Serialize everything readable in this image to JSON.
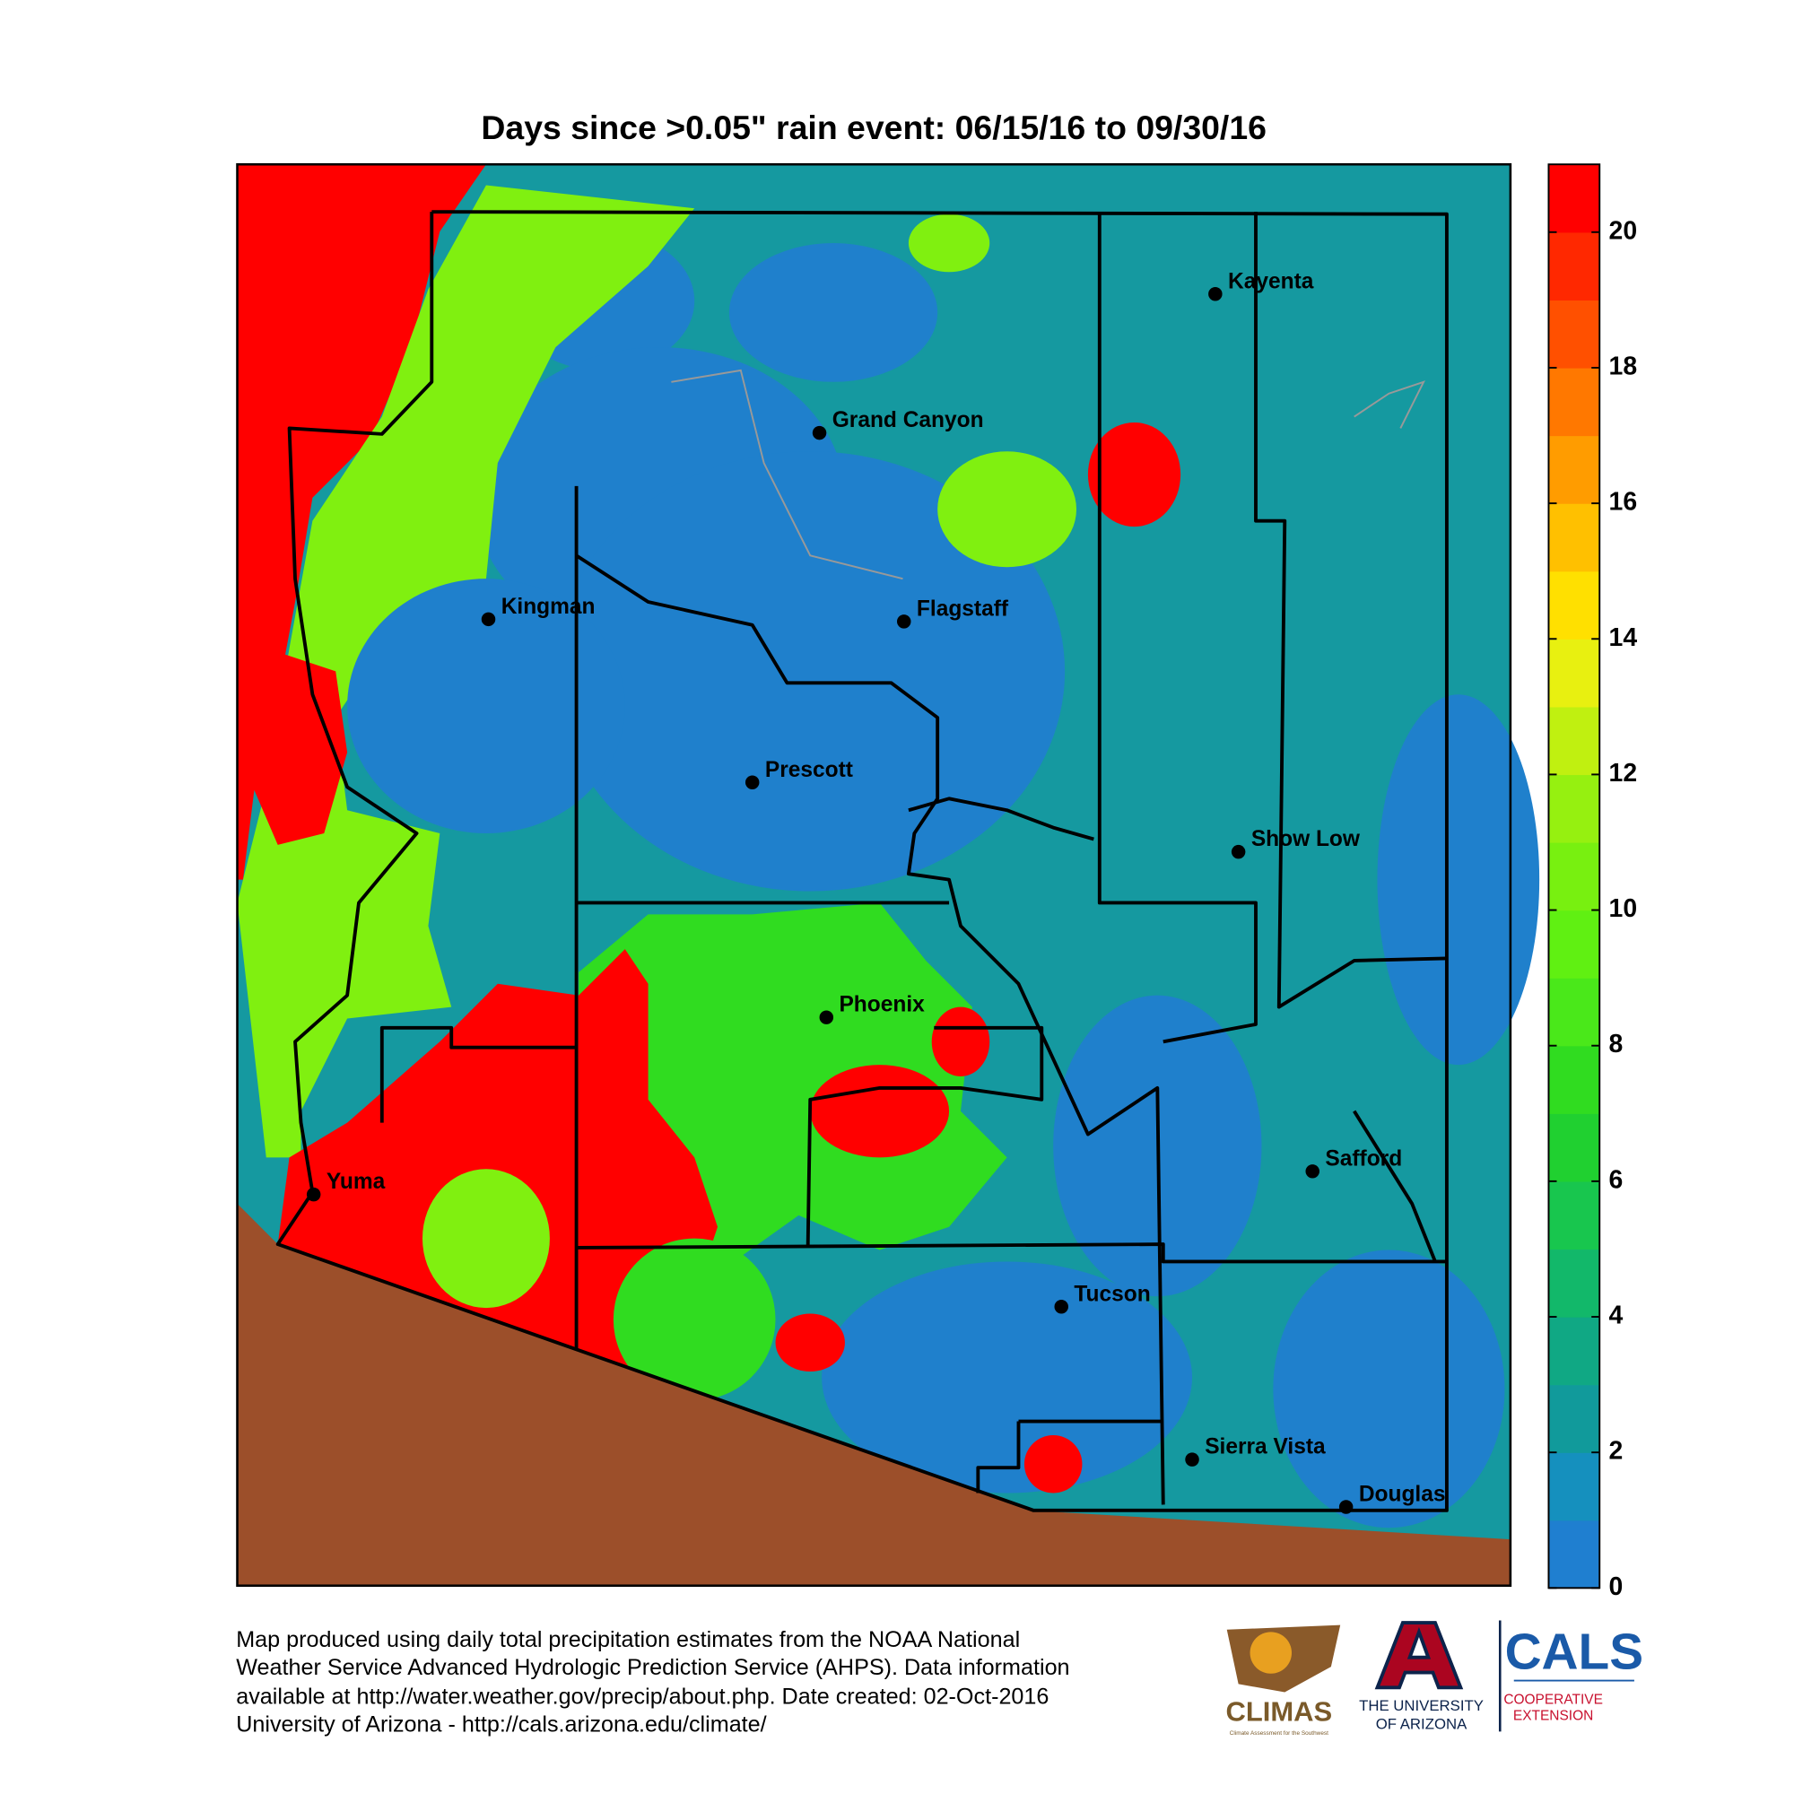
{
  "title": "Days since >0.05\" rain event: 06/15/16 to 09/30/16",
  "cities": [
    "Kayenta",
    "Grand Canyon",
    "Kingman",
    "Flagstaff",
    "Prescott",
    "Show Low",
    "Phoenix",
    "Safford",
    "Yuma",
    "Tucson",
    "Sierra Vista",
    "Douglas"
  ],
  "colorbar": {
    "lim": [
      0,
      21
    ],
    "ticks": [
      0,
      2,
      4,
      6,
      8,
      10,
      12,
      14,
      16,
      18,
      20
    ],
    "colors": [
      "#1f7fd0",
      "#1590be",
      "#119a9b",
      "#10a884",
      "#12b86a",
      "#18c64e",
      "#20d030",
      "#30dc20",
      "#4ae81a",
      "#60f012",
      "#78f010",
      "#96f010",
      "#c0f010",
      "#e8f010",
      "#ffe000",
      "#ffc000",
      "#ff9c00",
      "#ff7800",
      "#ff5000",
      "#ff2800",
      "#ff0000"
    ]
  },
  "footer": [
    "Map produced using daily total precipitation estimates from the NOAA National",
    "Weather Service Advanced Hydrologic Prediction Service (AHPS). Data information",
    "available at http://water.weather.gov/precip/about.php. Date created: 02-Oct-2016",
    "University of Arizona - http://cals.arizona.edu/climate/"
  ],
  "logos": {
    "climas": "CLIMAS",
    "climas_sub": "Climate Assessment for the Southwest",
    "ua_1": "THE UNIVERSITY",
    "ua_2": "OF ARIZONA",
    "cals": "CALS",
    "cals_1": "COOPERATIVE",
    "cals_2": "EXTENSION"
  }
}
